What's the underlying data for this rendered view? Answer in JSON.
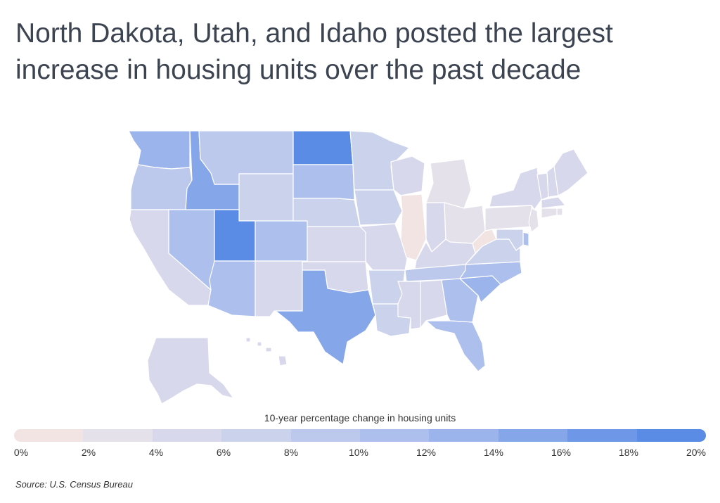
{
  "title": {
    "line1": "North Dakota, Utah, and Idaho posted the largest",
    "line2": "increase in housing units over the past decade"
  },
  "legend": {
    "title": "10-year percentage change in housing units",
    "ticks": [
      "0%",
      "2%",
      "4%",
      "6%",
      "8%",
      "10%",
      "12%",
      "14%",
      "16%",
      "18%",
      "20%"
    ],
    "colors": [
      "#f3e4e4",
      "#e4e1ea",
      "#d7d8eb",
      "#cbd2ec",
      "#bdc9ec",
      "#adbfec",
      "#9bb4ec",
      "#86a6ea",
      "#6f97e8",
      "#5a8ce6"
    ]
  },
  "source": "Source:  U.S. Census Bureau",
  "map_data": {
    "metric": "10-year percentage change in housing units",
    "states": {
      "WA": 13,
      "OR": 9,
      "CA": 5,
      "NV": 11,
      "ID": 15,
      "MT": 8,
      "WY": 7,
      "UT": 19,
      "CO": 10,
      "AZ": 11,
      "NM": 5,
      "ND": 20,
      "SD": 11,
      "NE": 7,
      "KS": 5,
      "OK": 5,
      "TX": 15,
      "MN": 7,
      "IA": 7,
      "MO": 5,
      "AR": 7,
      "LA": 7,
      "WI": 5,
      "IL": 1,
      "IN": 5,
      "MI": 3,
      "OH": 3,
      "KY": 5,
      "TN": 9,
      "MS": 5,
      "AL": 5,
      "GA": 11,
      "FL": 11,
      "SC": 13,
      "NC": 11,
      "VA": 7,
      "WV": 1,
      "PA": 3,
      "NY": 5,
      "VT": 4,
      "NH": 5,
      "ME": 5,
      "MA": 5,
      "RI": 3,
      "CT": 2,
      "NJ": 3,
      "DE": 11,
      "MD": 7,
      "AK": 5,
      "HI": 5
    }
  }
}
